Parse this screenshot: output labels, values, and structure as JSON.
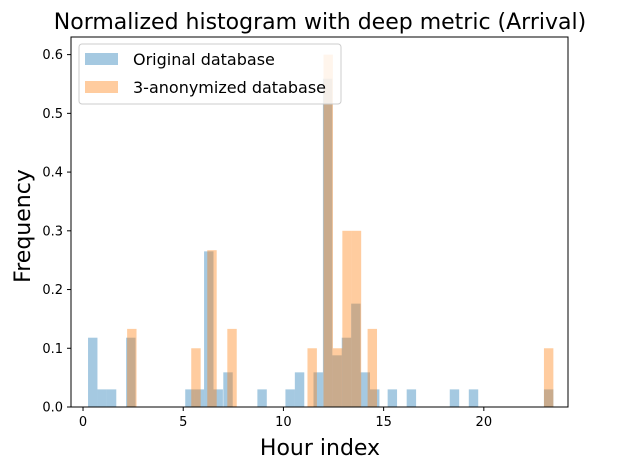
{
  "chart_data": {
    "type": "bar",
    "title": "Normalized histogram with deep metric (Arrival)",
    "xlabel": "Hour index",
    "ylabel": "Frequency",
    "xlim": [
      -0.6,
      24.2
    ],
    "ylim": [
      0,
      0.63
    ],
    "xticks": [
      0,
      5,
      10,
      15,
      20
    ],
    "yticks": [
      0.0,
      0.1,
      0.2,
      0.3,
      0.4,
      0.5,
      0.6
    ],
    "grid": false,
    "legend": "top-left",
    "series": [
      {
        "name": "Original database",
        "color": "#1f77b4",
        "bins": [
          {
            "x0": 0.25,
            "x1": 0.72,
            "value": 0.118
          },
          {
            "x0": 0.72,
            "x1": 1.19,
            "value": 0.03
          },
          {
            "x0": 1.19,
            "x1": 1.66,
            "value": 0.03
          },
          {
            "x0": 2.15,
            "x1": 2.62,
            "value": 0.118
          },
          {
            "x0": 5.1,
            "x1": 5.57,
            "value": 0.03
          },
          {
            "x0": 5.57,
            "x1": 6.04,
            "value": 0.03
          },
          {
            "x0": 6.04,
            "x1": 6.51,
            "value": 0.265
          },
          {
            "x0": 6.51,
            "x1": 6.98,
            "value": 0.03
          },
          {
            "x0": 7.0,
            "x1": 7.47,
            "value": 0.059
          },
          {
            "x0": 8.7,
            "x1": 9.17,
            "value": 0.03
          },
          {
            "x0": 10.1,
            "x1": 10.57,
            "value": 0.03
          },
          {
            "x0": 10.57,
            "x1": 11.04,
            "value": 0.059
          },
          {
            "x0": 11.5,
            "x1": 11.97,
            "value": 0.059
          },
          {
            "x0": 11.97,
            "x1": 12.44,
            "value": 0.559
          },
          {
            "x0": 12.44,
            "x1": 12.91,
            "value": 0.088
          },
          {
            "x0": 12.91,
            "x1": 13.38,
            "value": 0.118
          },
          {
            "x0": 13.38,
            "x1": 13.85,
            "value": 0.176
          },
          {
            "x0": 13.85,
            "x1": 14.32,
            "value": 0.059
          },
          {
            "x0": 14.32,
            "x1": 14.79,
            "value": 0.03
          },
          {
            "x0": 15.2,
            "x1": 15.67,
            "value": 0.03
          },
          {
            "x0": 16.15,
            "x1": 16.62,
            "value": 0.03
          },
          {
            "x0": 18.3,
            "x1": 18.77,
            "value": 0.03
          },
          {
            "x0": 19.25,
            "x1": 19.72,
            "value": 0.03
          },
          {
            "x0": 23.0,
            "x1": 23.47,
            "value": 0.03
          }
        ]
      },
      {
        "name": "3-anonymized database",
        "color": "#ff7f0e",
        "bins": [
          {
            "x0": 2.2,
            "x1": 2.67,
            "value": 0.133
          },
          {
            "x0": 5.4,
            "x1": 5.87,
            "value": 0.1
          },
          {
            "x0": 6.2,
            "x1": 6.67,
            "value": 0.267
          },
          {
            "x0": 7.2,
            "x1": 7.67,
            "value": 0.133
          },
          {
            "x0": 11.2,
            "x1": 11.67,
            "value": 0.1
          },
          {
            "x0": 12.0,
            "x1": 12.47,
            "value": 0.6
          },
          {
            "x0": 12.47,
            "x1": 12.94,
            "value": 0.1
          },
          {
            "x0": 12.94,
            "x1": 13.41,
            "value": 0.3
          },
          {
            "x0": 13.41,
            "x1": 13.88,
            "value": 0.3
          },
          {
            "x0": 14.2,
            "x1": 14.67,
            "value": 0.133
          },
          {
            "x0": 23.0,
            "x1": 23.47,
            "value": 0.1
          }
        ]
      }
    ]
  }
}
